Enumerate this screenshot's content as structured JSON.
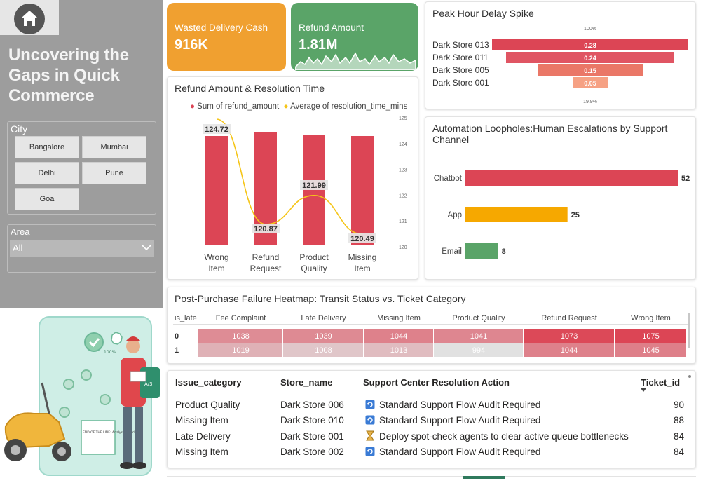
{
  "sidebar": {
    "title": "Uncovering the Gaps in Quick Commerce",
    "city_label": "City",
    "cities": [
      "Bangalore",
      "Mumbai",
      "Delhi",
      "Pune",
      "Goa"
    ],
    "area_label": "Area",
    "area_value": "All",
    "home_icon": "home-icon"
  },
  "illustration": {
    "badge_text": "100%",
    "screen_text": "END OF THE LINE: Analysis Concluded.",
    "box_text": "A/3"
  },
  "kpis": [
    {
      "label": "Wasted Delivery Cash",
      "value": "916K",
      "color": "#f0a030"
    },
    {
      "label": "Refund Amount",
      "value": "1.81M",
      "color": "#5aa468"
    }
  ],
  "colors": {
    "red": "#dc4555",
    "yellow": "#f5c518",
    "orange": "#f6a800",
    "green": "#5aa468"
  },
  "chart_data": [
    {
      "type": "bar",
      "title": "Refund Amount & Resolution Time",
      "categories": [
        "Wrong Item",
        "Refund Request",
        "Product Quality",
        "Missing Item"
      ],
      "series": [
        {
          "name": "Sum of refund_amount",
          "kind": "bar",
          "values": [
            124.72,
            120.87,
            121.99,
            120.49
          ]
        },
        {
          "name": "Average of resolution_time_mins",
          "kind": "line",
          "values": [
            124.72,
            120.87,
            121.99,
            120.49
          ]
        }
      ],
      "data_labels": [
        "124.72",
        "120.87",
        "121.99",
        "120.49"
      ],
      "y2_ticks": [
        "125",
        "124",
        "123",
        "122",
        "121",
        "120"
      ],
      "y2lim": [
        120,
        125
      ],
      "legend": "top-right"
    },
    {
      "type": "bar",
      "title": "Peak Hour Delay Spike",
      "categories": [
        "Dark Store 013",
        "Dark Store 011",
        "Dark Store 005",
        "Dark Store 001"
      ],
      "values": [
        0.28,
        0.24,
        0.15,
        0.05
      ],
      "top_label": "100%",
      "bottom_label": "19.9%"
    },
    {
      "type": "bar",
      "title": "Automation Loopholes:Human Escalations by Support Channel",
      "categories": [
        "Chatbot",
        "App",
        "Email"
      ],
      "values": [
        52,
        25,
        8
      ],
      "colors": [
        "#dc4555",
        "#f6a800",
        "#5aa468"
      ]
    },
    {
      "type": "heatmap",
      "title": "Post-Purchase Failure Heatmap: Transit Status vs. Ticket Category",
      "row_header": "is_late",
      "columns": [
        "Fee Complaint",
        "Late Delivery",
        "Missing Item",
        "Product Quality",
        "Refund Request",
        "Wrong Item"
      ],
      "rows": [
        "0",
        "1"
      ],
      "values": [
        [
          1038,
          1039,
          1044,
          1041,
          1073,
          1075
        ],
        [
          1019,
          1008,
          1013,
          994,
          1044,
          1045
        ]
      ]
    },
    {
      "type": "table",
      "columns": [
        "Issue_category",
        "Store_name",
        "Support Center Resolution Action",
        "Ticket_id"
      ],
      "rows": [
        {
          "issue": "Product Quality",
          "store": "Dark Store 006",
          "icon": "refresh-icon",
          "action": "Standard Support Flow Audit Required",
          "ticket": "90"
        },
        {
          "issue": "Missing Item",
          "store": "Dark Store 010",
          "icon": "refresh-icon",
          "action": "Standard Support Flow Audit Required",
          "ticket": "88"
        },
        {
          "issue": "Late Delivery",
          "store": "Dark Store 001",
          "icon": "hourglass-icon",
          "action": "Deploy spot-check agents to clear active queue bottlenecks",
          "ticket": "84"
        },
        {
          "issue": "Missing Item",
          "store": "Dark Store 002",
          "icon": "refresh-icon",
          "action": "Standard Support Flow Audit Required",
          "ticket": "84"
        }
      ]
    }
  ]
}
